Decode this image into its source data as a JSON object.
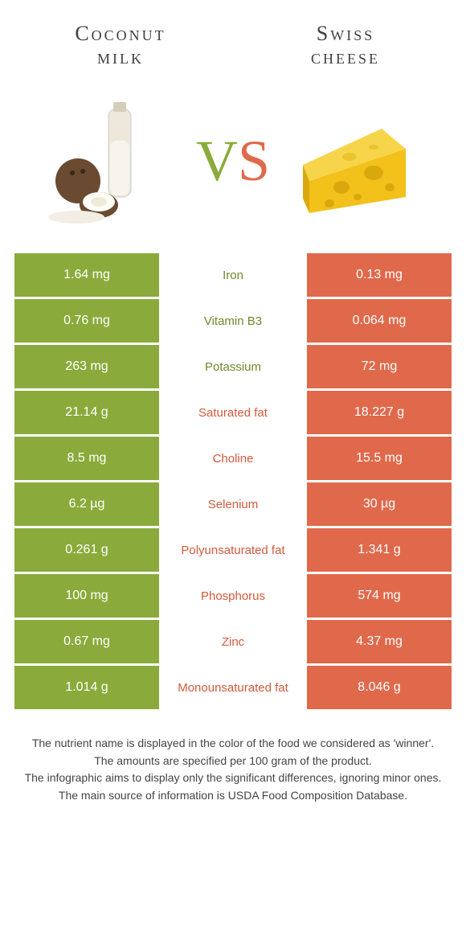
{
  "colors": {
    "left": "#8aab3b",
    "right": "#e0694b",
    "left_text": "#6d8a2d",
    "right_text": "#d15a3c"
  },
  "food_left": {
    "title_line1": "Coconut",
    "title_line2": "milk"
  },
  "food_right": {
    "title_line1": "Swiss",
    "title_line2": "cheese"
  },
  "vs": {
    "v": "V",
    "s": "S"
  },
  "rows": [
    {
      "left": "1.64 mg",
      "name": "Iron",
      "right": "0.13 mg",
      "winner": "left"
    },
    {
      "left": "0.76 mg",
      "name": "Vitamin B3",
      "right": "0.064 mg",
      "winner": "left"
    },
    {
      "left": "263 mg",
      "name": "Potassium",
      "right": "72 mg",
      "winner": "left"
    },
    {
      "left": "21.14 g",
      "name": "Saturated fat",
      "right": "18.227 g",
      "winner": "right"
    },
    {
      "left": "8.5 mg",
      "name": "Choline",
      "right": "15.5 mg",
      "winner": "right"
    },
    {
      "left": "6.2 µg",
      "name": "Selenium",
      "right": "30 µg",
      "winner": "right"
    },
    {
      "left": "0.261 g",
      "name": "Polyunsaturated fat",
      "right": "1.341 g",
      "winner": "right"
    },
    {
      "left": "100 mg",
      "name": "Phosphorus",
      "right": "574 mg",
      "winner": "right"
    },
    {
      "left": "0.67 mg",
      "name": "Zinc",
      "right": "4.37 mg",
      "winner": "right"
    },
    {
      "left": "1.014 g",
      "name": "Monounsaturated fat",
      "right": "8.046 g",
      "winner": "right"
    }
  ],
  "footer": {
    "line1": "The nutrient name is displayed in the color of the food we considered as 'winner'.",
    "line2": "The amounts are specified per 100 gram of the product.",
    "line3": "The infographic aims to display only the significant differences, ignoring minor ones.",
    "line4": "The main source of information is USDA Food Composition Database."
  }
}
